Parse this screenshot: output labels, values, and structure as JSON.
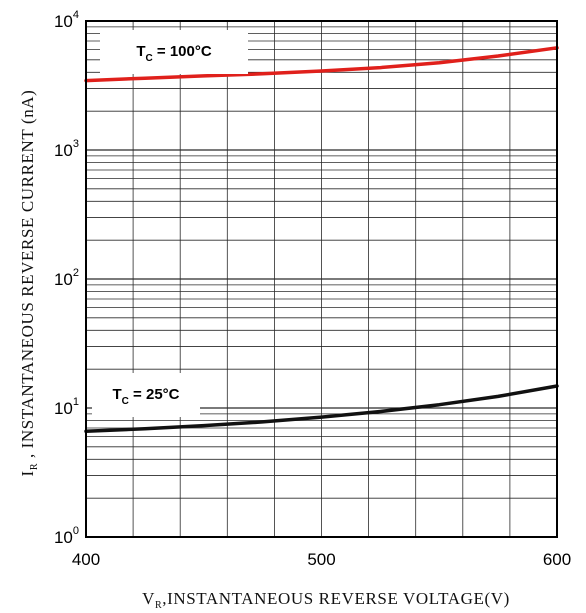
{
  "chart_data": {
    "type": "line",
    "xlabel_main": "V",
    "xlabel_sub": "R",
    "xlabel_rest": ",INSTANTANEOUS REVERSE VOLTAGE(V)",
    "ylabel_main": "I",
    "ylabel_sub": "R",
    "ylabel_rest": " , INSTANTANEOUS REVERSE CURRENT (nA)",
    "xlim": [
      400,
      600
    ],
    "ylim": [
      1,
      10000
    ],
    "yscale": "log",
    "x_ticks": [
      "400",
      "500",
      "600"
    ],
    "y_ticks": [
      {
        "base": "10",
        "exp": "0",
        "value": 1
      },
      {
        "base": "10",
        "exp": "1",
        "value": 10
      },
      {
        "base": "10",
        "exp": "2",
        "value": 100
      },
      {
        "base": "10",
        "exp": "3",
        "value": 1000
      },
      {
        "base": "10",
        "exp": "4",
        "value": 10000
      }
    ],
    "grid": true,
    "series": [
      {
        "name_main": "T",
        "name_sub": "C",
        "name_rest": " = 100°C",
        "color": "#e0201b",
        "x": [
          400,
          425,
          450,
          475,
          500,
          525,
          550,
          575,
          600
        ],
        "y": [
          3450,
          3600,
          3750,
          3900,
          4100,
          4350,
          4750,
          5350,
          6200
        ]
      },
      {
        "name_main": "T",
        "name_sub": "C",
        "name_rest": " = 25°C",
        "color": "#111111",
        "x": [
          400,
          425,
          450,
          475,
          500,
          525,
          550,
          575,
          600
        ],
        "y": [
          6.6,
          6.9,
          7.3,
          7.8,
          8.5,
          9.4,
          10.6,
          12.3,
          14.8
        ]
      }
    ]
  }
}
